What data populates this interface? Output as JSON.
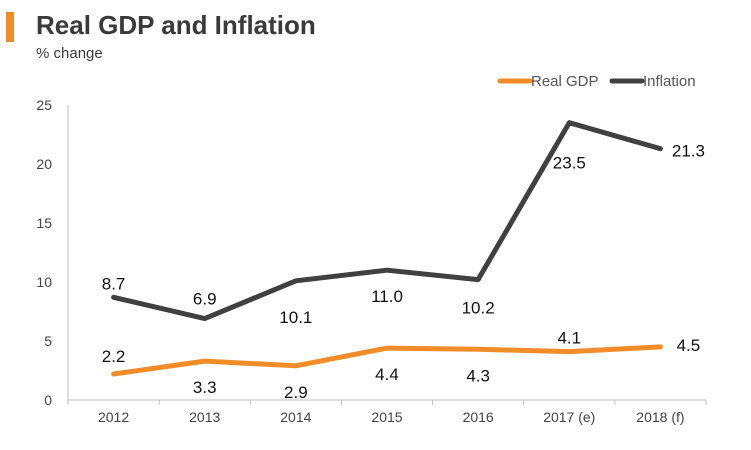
{
  "colors": {
    "accent": "#f28c28",
    "gdp": "#f28c28",
    "inflation": "#404040",
    "axis": "#bfbfbf"
  },
  "chart_data": {
    "type": "line",
    "title": "Real GDP and Inflation",
    "subtitle": "% change",
    "categories": [
      "2012",
      "2013",
      "2014",
      "2015",
      "2016",
      "2017 (e)",
      "2018 (f)"
    ],
    "series": [
      {
        "name": "Real GDP",
        "values": [
          2.2,
          3.3,
          2.9,
          4.4,
          4.3,
          4.1,
          4.5
        ],
        "color": "#f28c28"
      },
      {
        "name": "Inflation",
        "values": [
          8.7,
          6.9,
          10.1,
          11.0,
          10.2,
          23.5,
          21.3
        ],
        "color": "#404040"
      }
    ],
    "value_labels": [
      [
        "2.2",
        "3.3",
        "2.9",
        "4.4",
        "4.3",
        "4.1",
        "4.5"
      ],
      [
        "8.7",
        "6.9",
        "10.1",
        "11.0",
        "10.2",
        "23.5",
        "21.3"
      ]
    ],
    "y_ticks": [
      "0",
      "5",
      "10",
      "15",
      "20",
      "25"
    ],
    "ylim": [
      0,
      25
    ],
    "xlabel": "",
    "ylabel": "",
    "legend_position": "top-right",
    "grid": false
  }
}
